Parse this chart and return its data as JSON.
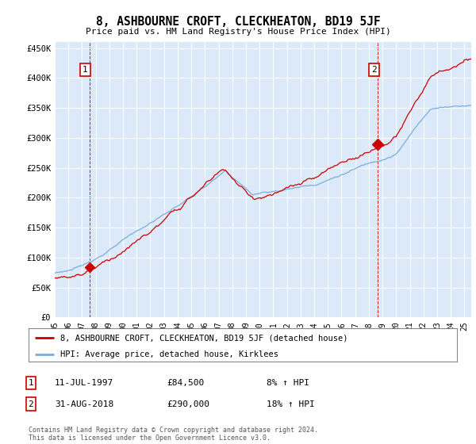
{
  "title": "8, ASHBOURNE CROFT, CLECKHEATON, BD19 5JF",
  "subtitle": "Price paid vs. HM Land Registry's House Price Index (HPI)",
  "ylabel_ticks": [
    "£0",
    "£50K",
    "£100K",
    "£150K",
    "£200K",
    "£250K",
    "£300K",
    "£350K",
    "£400K",
    "£450K"
  ],
  "ytick_values": [
    0,
    50000,
    100000,
    150000,
    200000,
    250000,
    300000,
    350000,
    400000,
    450000
  ],
  "ylim": [
    0,
    460000
  ],
  "xlim_start": 1995.0,
  "xlim_end": 2025.5,
  "bg_color": "#dce9f8",
  "red_line_color": "#cc0000",
  "blue_line_color": "#7aaddb",
  "marker1_x": 1997.53,
  "marker1_y": 84500,
  "marker2_x": 2018.66,
  "marker2_y": 290000,
  "legend_red_label": "8, ASHBOURNE CROFT, CLECKHEATON, BD19 5JF (detached house)",
  "legend_blue_label": "HPI: Average price, detached house, Kirklees",
  "note1_date": "11-JUL-1997",
  "note1_price": "£84,500",
  "note1_hpi": "8% ↑ HPI",
  "note2_date": "31-AUG-2018",
  "note2_price": "£290,000",
  "note2_hpi": "18% ↑ HPI",
  "footer": "Contains HM Land Registry data © Crown copyright and database right 2024.\nThis data is licensed under the Open Government Licence v3.0.",
  "xtick_years": [
    1995,
    1996,
    1997,
    1998,
    1999,
    2000,
    2001,
    2002,
    2003,
    2004,
    2005,
    2006,
    2007,
    2008,
    2009,
    2010,
    2011,
    2012,
    2013,
    2014,
    2015,
    2016,
    2017,
    2018,
    2019,
    2020,
    2021,
    2022,
    2023,
    2024,
    2025
  ]
}
